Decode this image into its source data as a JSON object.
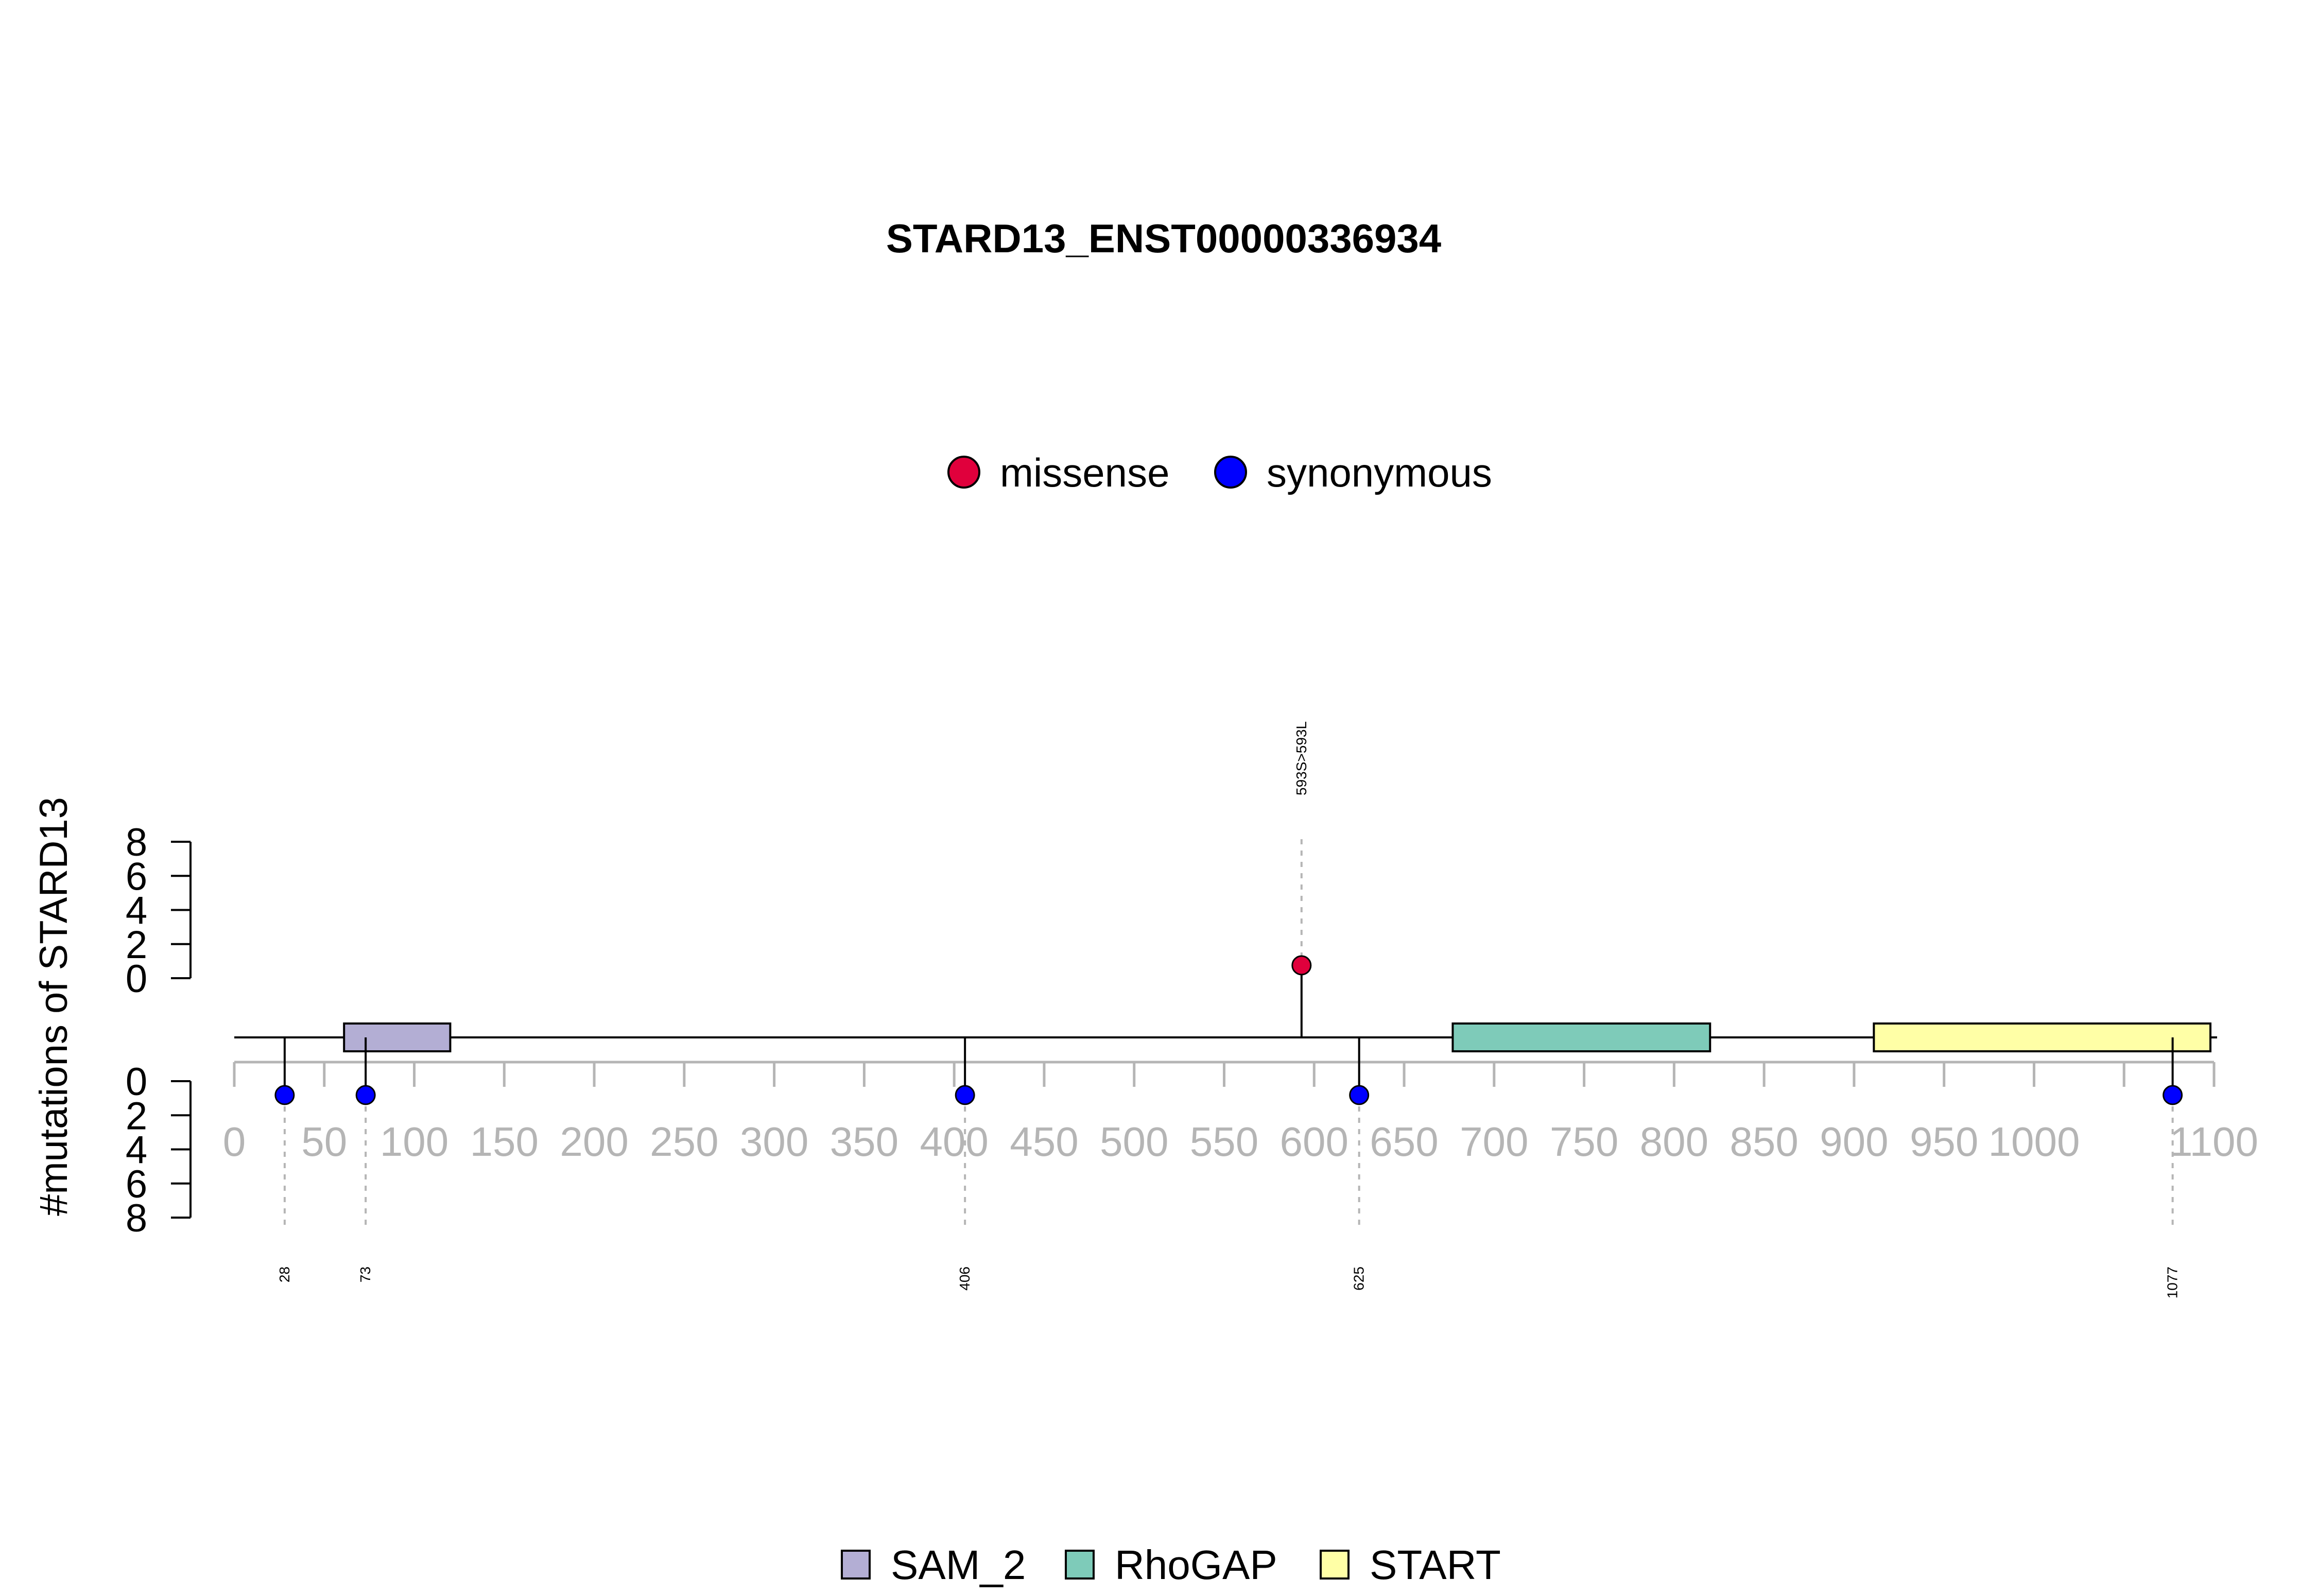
{
  "chart_data": {
    "type": "lollipop",
    "title": "STARD13_ENST00000336934",
    "ylabel": "#mutations of STARD13",
    "xlabel": "",
    "x_range": [
      0,
      1100
    ],
    "x_ticks": [
      0,
      50,
      100,
      150,
      200,
      250,
      300,
      350,
      400,
      450,
      500,
      550,
      600,
      650,
      700,
      750,
      800,
      850,
      900,
      950,
      1000,
      1100
    ],
    "x_tick_marks": [
      0,
      50,
      100,
      150,
      200,
      250,
      300,
      350,
      400,
      450,
      500,
      550,
      600,
      650,
      700,
      750,
      800,
      850,
      900,
      950,
      1000,
      1050,
      1100
    ],
    "y_ticks": [
      0,
      2,
      4,
      6,
      8
    ],
    "y_range": [
      0,
      8
    ],
    "protein_length": 1100,
    "mutation_legend": [
      {
        "name": "missense",
        "color": "#e0003c"
      },
      {
        "name": "synonymous",
        "color": "#0000ff"
      }
    ],
    "domain_legend": [
      {
        "name": "SAM_2",
        "color": "#b3aed4"
      },
      {
        "name": "RhoGAP",
        "color": "#7ecbb9"
      },
      {
        "name": "START",
        "color": "#ffffa6"
      }
    ],
    "domains": [
      {
        "name": "SAM_2",
        "start": 61,
        "end": 120,
        "color": "#b3aed4"
      },
      {
        "name": "RhoGAP",
        "start": 677,
        "end": 820,
        "color": "#7ecbb9"
      },
      {
        "name": "START",
        "start": 911,
        "end": 1098,
        "color": "#ffffa6"
      }
    ],
    "mutations_top": [
      {
        "position": 593,
        "count": 1,
        "type": "missense",
        "label": "593S>593L",
        "color": "#e0003c"
      }
    ],
    "mutations_bottom": [
      {
        "position": 28,
        "count": 1,
        "type": "synonymous",
        "label": "28",
        "color": "#0000ff"
      },
      {
        "position": 73,
        "count": 1,
        "type": "synonymous",
        "label": "73",
        "color": "#0000ff"
      },
      {
        "position": 406,
        "count": 1,
        "type": "synonymous",
        "label": "406",
        "color": "#0000ff"
      },
      {
        "position": 625,
        "count": 1,
        "type": "synonymous",
        "label": "625",
        "color": "#0000ff"
      },
      {
        "position": 1077,
        "count": 1,
        "type": "synonymous",
        "label": "1077",
        "color": "#0000ff"
      }
    ]
  }
}
